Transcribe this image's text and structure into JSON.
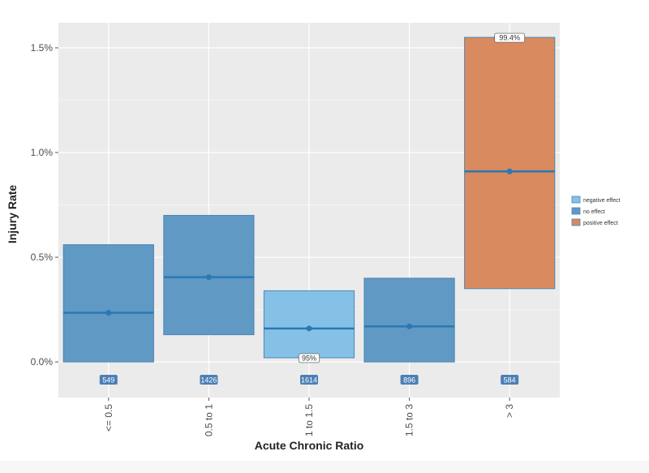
{
  "chart_data": {
    "type": "crossbar",
    "title": "",
    "xlabel": "Acute Chronic Ratio",
    "ylabel": "Injury Rate",
    "ylim": [
      -0.0017,
      0.0162
    ],
    "yticks": [
      {
        "value": 0.0,
        "label": "0.0%"
      },
      {
        "value": 0.005,
        "label": "0.5%"
      },
      {
        "value": 0.01,
        "label": "1.0%"
      },
      {
        "value": 0.015,
        "label": "1.5%"
      }
    ],
    "categories": [
      "<= 0.5",
      "0.5 to 1",
      "1 to 1.5",
      "1.5 to 3",
      "> 3"
    ],
    "bars": [
      {
        "category": "<= 0.5",
        "low": 0.0,
        "high": 0.0056,
        "mid": 0.00235,
        "effect": "no effect",
        "count": "549",
        "annotation": ""
      },
      {
        "category": "0.5 to 1",
        "low": 0.0013,
        "high": 0.007,
        "mid": 0.00405,
        "effect": "no effect",
        "count": "1426",
        "annotation": ""
      },
      {
        "category": "1 to 1.5",
        "low": 0.0002,
        "high": 0.0034,
        "mid": 0.0016,
        "effect": "negative effect",
        "count": "1614",
        "annotation": "95%"
      },
      {
        "category": "1.5 to 3",
        "low": 0.0,
        "high": 0.004,
        "mid": 0.0017,
        "effect": "no effect",
        "count": "896",
        "annotation": ""
      },
      {
        "category": "> 3",
        "low": 0.0035,
        "high": 0.0155,
        "mid": 0.0091,
        "effect": "positive effect",
        "count": "584",
        "annotation": "99.4%"
      }
    ],
    "legend": {
      "position": "right",
      "entries": [
        {
          "label": "negative effect",
          "color": "#85c1e6"
        },
        {
          "label": "no effect",
          "color": "#5f99c4"
        },
        {
          "label": "positive effect",
          "color": "#d98a5e"
        }
      ]
    },
    "colors": {
      "panel_background": "#ebebeb",
      "grid": "#ffffff",
      "bar_outline": "#4e86b5",
      "mid_line": "#2a78b4",
      "count_label_background": "#4a7fb5"
    },
    "grid": true
  }
}
